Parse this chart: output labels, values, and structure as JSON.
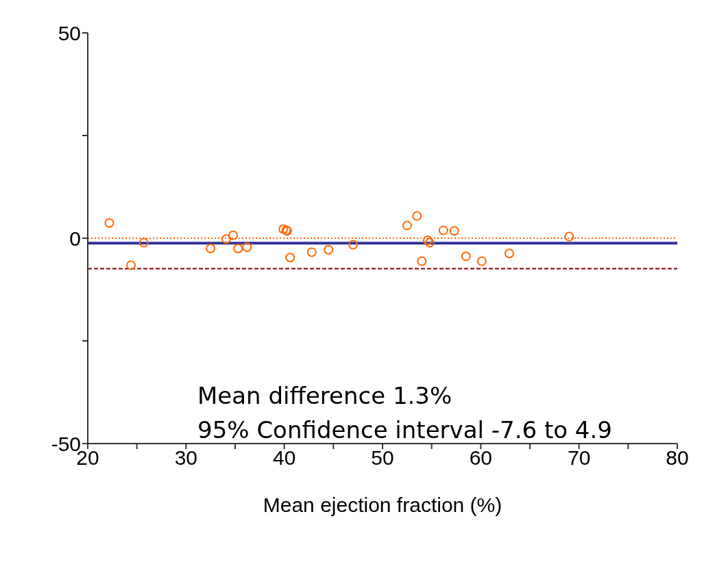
{
  "chart_data": {
    "type": "scatter",
    "xlabel": "Mean ejection fraction (%)",
    "xlim": [
      20,
      80
    ],
    "xticks": [
      20,
      {
        "value": 25,
        "label": null
      },
      30,
      {
        "value": 35,
        "label": null
      },
      40,
      {
        "value": 45,
        "label": null
      },
      50,
      {
        "value": 55,
        "label": null
      },
      60,
      {
        "value": 65,
        "label": null
      },
      70,
      {
        "value": 75,
        "label": null
      },
      80
    ],
    "ylim": [
      -50,
      50
    ],
    "yticks": [
      -50,
      {
        "value": -25,
        "label": null
      },
      0,
      {
        "value": 25,
        "label": null
      },
      50
    ],
    "grid": false,
    "legend": false,
    "marker": "circle",
    "series": [
      {
        "color": "#ff6600",
        "x": [
          22.2,
          24.4,
          25.7,
          32.5,
          34.1,
          34.8,
          35.3,
          36.2,
          39.9,
          40.2,
          40.3,
          40.6,
          42.8,
          44.5,
          47.0,
          52.5,
          53.5,
          54.6,
          54.8,
          54.0,
          56.2,
          57.3,
          58.5,
          60.1,
          62.9,
          69.0
        ],
        "values": [
          3.7,
          -6.6,
          -1.1,
          -2.5,
          -0.2,
          0.7,
          -2.5,
          -2.2,
          2.2,
          1.9,
          1.8,
          -4.7,
          -3.4,
          -2.8,
          -1.6,
          3.1,
          5.4,
          -0.5,
          -1.1,
          -5.6,
          1.9,
          1.8,
          -4.4,
          -5.6,
          -3.7,
          0.4
        ]
      }
    ],
    "ref_lines": [
      {
        "axis": "y",
        "value": 0,
        "color": "#ff6600",
        "line_style": "dotted"
      },
      {
        "axis": "y",
        "value": -1.2,
        "color": "#333399",
        "line_style": "solid"
      },
      {
        "axis": "y",
        "value": -7.4,
        "color": "#800000",
        "line_style": "dashed"
      }
    ],
    "annotations": [
      "Mean difference 1.3%",
      "95% Confidence interval -7.6 to 4.9"
    ]
  }
}
